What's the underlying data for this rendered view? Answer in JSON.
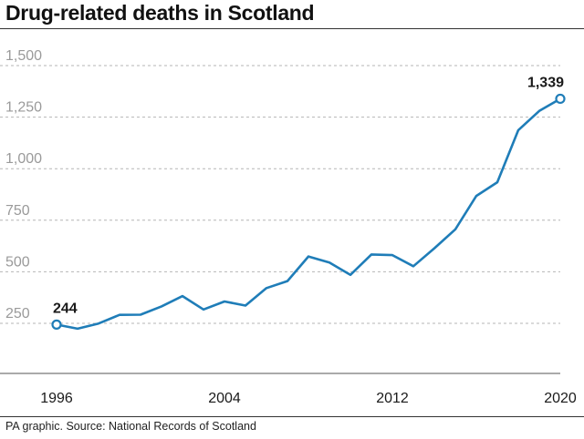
{
  "title": "Drug-related deaths in Scotland",
  "source": "PA graphic. Source: National Records of Scotland",
  "colors": {
    "line": "#1f7db8",
    "grid": "#b5b5b5",
    "text": "#1a1a1a",
    "tick": "#9a9a9a"
  },
  "chart_data": {
    "type": "line",
    "title": "Drug-related deaths in Scotland",
    "xlabel": "",
    "ylabel": "",
    "x_ticks": [
      {
        "value": 1996,
        "label": "1996"
      },
      {
        "value": 2004,
        "label": "2004"
      },
      {
        "value": 2012,
        "label": "2012"
      },
      {
        "value": 2020,
        "label": "2020"
      }
    ],
    "y_ticks": [
      {
        "value": 250,
        "label": "250"
      },
      {
        "value": 500,
        "label": "500"
      },
      {
        "value": 750,
        "label": "750"
      },
      {
        "value": 1000,
        "label": "1,000"
      },
      {
        "value": 1250,
        "label": "1,250"
      },
      {
        "value": 1500,
        "label": "1,500"
      }
    ],
    "xlim": [
      1996,
      2020
    ],
    "ylim": [
      0,
      1500
    ],
    "grid": "horizontal dashed",
    "series": [
      {
        "x": [
          1996,
          1997,
          1998,
          1999,
          2000,
          2001,
          2002,
          2003,
          2004,
          2005,
          2006,
          2007,
          2008,
          2009,
          2010,
          2011,
          2012,
          2013,
          2014,
          2015,
          2016,
          2017,
          2018,
          2019,
          2020
        ],
        "values": [
          244,
          224,
          249,
          291,
          292,
          332,
          382,
          317,
          356,
          336,
          421,
          455,
          574,
          545,
          485,
          584,
          581,
          527,
          614,
          706,
          868,
          934,
          1187,
          1280,
          1339
        ]
      }
    ],
    "annotations": [
      {
        "x": 1996,
        "y": 244,
        "label": "244"
      },
      {
        "x": 2020,
        "y": 1339,
        "label": "1,339"
      }
    ]
  }
}
